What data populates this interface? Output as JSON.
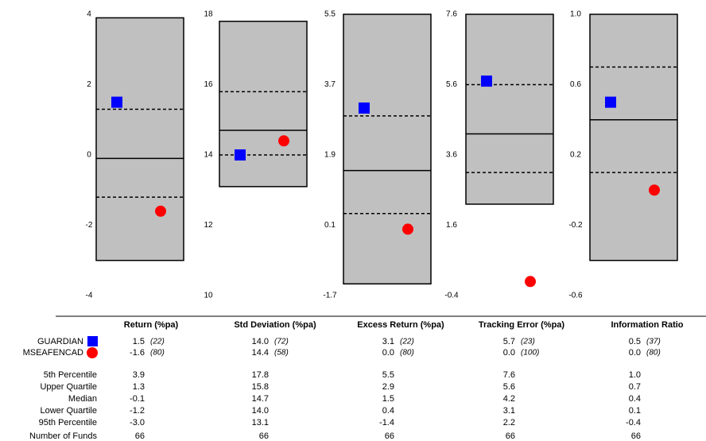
{
  "chart_data": {
    "type": "percentile-box",
    "series": [
      {
        "name": "GUARDIAN",
        "color": "#0000ff",
        "marker": "square"
      },
      {
        "name": "MSEAFENCAD",
        "color": "#ff0000",
        "marker": "circle"
      }
    ],
    "stat_labels": [
      "5th Percentile",
      "Upper Quartile",
      "Median",
      "Lower Quartile",
      "95th Percentile"
    ],
    "count_label": "Number of Funds",
    "box_color": "#c0c0c0",
    "panels": [
      {
        "title": "Return (%pa)",
        "ylim": [
          -4,
          4
        ],
        "yticks": [
          4,
          2,
          0,
          -2,
          -4
        ],
        "stats": {
          "values": [
            3.9,
            1.3,
            -0.1,
            -1.2,
            -3.0
          ],
          "value_labels": [
            "3.9",
            "1.3",
            "-0.1",
            "-1.2",
            "-3.0"
          ]
        },
        "funds": {
          "values": [
            1.5,
            -1.6
          ],
          "value_labels": [
            "1.5",
            "-1.6"
          ],
          "ranks": [
            "(22)",
            "(80)"
          ]
        },
        "count": 66
      },
      {
        "title": "Std Deviation  (%pa)",
        "ylim": [
          10,
          18
        ],
        "yticks": [
          18,
          16,
          14,
          12,
          10
        ],
        "stats": {
          "values": [
            17.8,
            15.8,
            14.7,
            14.0,
            13.1
          ],
          "value_labels": [
            "17.8",
            "15.8",
            "14.7",
            "14.0",
            "13.1"
          ]
        },
        "funds": {
          "values": [
            14.0,
            14.4
          ],
          "value_labels": [
            "14.0",
            "14.4"
          ],
          "ranks": [
            "(72)",
            "(58)"
          ]
        },
        "count": 66
      },
      {
        "title": "Excess Return (%pa)",
        "ylim": [
          -1.7,
          5.5
        ],
        "yticks": [
          5.5,
          3.7,
          1.9,
          0.1,
          -1.7
        ],
        "stats": {
          "values": [
            5.5,
            2.9,
            1.5,
            0.4,
            -1.4
          ],
          "value_labels": [
            "5.5",
            "2.9",
            "1.5",
            "0.4",
            "-1.4"
          ]
        },
        "funds": {
          "values": [
            3.1,
            0.0
          ],
          "value_labels": [
            "3.1",
            "0.0"
          ],
          "ranks": [
            "(22)",
            "(80)"
          ]
        },
        "count": 66
      },
      {
        "title": "Tracking Error (%pa)",
        "ylim": [
          -0.4,
          7.6
        ],
        "yticks": [
          7.6,
          5.6,
          3.6,
          1.6,
          -0.4
        ],
        "stats": {
          "values": [
            7.6,
            5.6,
            4.2,
            3.1,
            2.2
          ],
          "value_labels": [
            "7.6",
            "5.6",
            "4.2",
            "3.1",
            "2.2"
          ]
        },
        "funds": {
          "values": [
            5.7,
            0.0
          ],
          "value_labels": [
            "5.7",
            "0.0"
          ],
          "ranks": [
            "(23)",
            "(100)"
          ]
        },
        "count": 66
      },
      {
        "title": "Information Ratio",
        "ylim": [
          -0.6,
          1.0
        ],
        "yticks": [
          {
            "value": 1.0,
            "label": "1.0"
          },
          0.6,
          0.2,
          -0.2,
          -0.6
        ],
        "stats": {
          "values": [
            1.0,
            0.7,
            0.4,
            0.1,
            -0.4
          ],
          "value_labels": [
            "1.0",
            "0.7",
            "0.4",
            "0.1",
            "-0.4"
          ]
        },
        "funds": {
          "values": [
            0.5,
            0.0
          ],
          "value_labels": [
            "0.5",
            "0.0"
          ],
          "ranks": [
            "(37)",
            "(80)"
          ]
        },
        "count": 66
      }
    ]
  }
}
